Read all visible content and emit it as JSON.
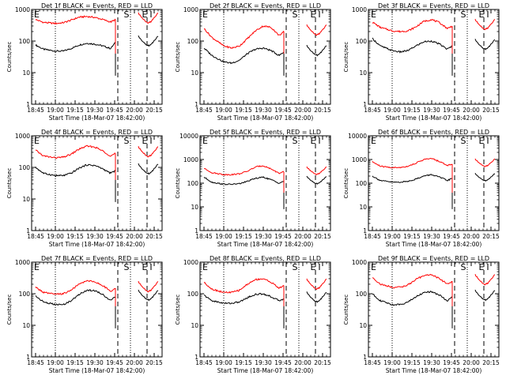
{
  "figure": {
    "colors": {
      "events": "#000000",
      "lld": "#ff0000",
      "axes": "#000000",
      "background": "#ffffff"
    },
    "x_tick_labels": [
      "18:45",
      "19:00",
      "19:15",
      "19:30",
      "19:45",
      "20:00",
      "20:15"
    ],
    "xlabel": "Start Time (18-Mar-07 18:42:00)",
    "ylabel": "Counts/sec",
    "markers": [
      {
        "label": "S",
        "time": 19.9
      },
      {
        "label": "E",
        "time": 20.13
      },
      {
        "label": "I",
        "time": 20.21
      }
    ]
  },
  "chart_data": [
    {
      "type": "line",
      "title": "Det 1f BLACK = Events, RED = LLD",
      "xlabel": "Start Time (18-Mar-07 18:42:00)",
      "ylabel": "Counts/sec",
      "y_scale": "log",
      "y_ticks": [
        1,
        10,
        100,
        1000
      ],
      "ylim": [
        1,
        1000
      ],
      "x_ticks": [
        "18:45",
        "19:00",
        "19:15",
        "19:30",
        "19:45",
        "20:00",
        "20:15"
      ],
      "vlines": [
        {
          "time": 19.0,
          "style": "dotted"
        },
        {
          "time": 19.79,
          "style": "dashed"
        },
        {
          "time": 19.95,
          "style": "dotted"
        },
        {
          "time": 20.16,
          "style": "dashed"
        }
      ],
      "series": [
        {
          "name": "Events",
          "color": "#000000",
          "t": [
            18.75,
            18.85,
            19.0,
            19.1,
            19.2,
            19.3,
            19.4,
            19.5,
            19.6,
            19.7,
            19.76
          ],
          "y": [
            75,
            55,
            48,
            48,
            58,
            75,
            85,
            80,
            70,
            58,
            90
          ]
        },
        {
          "name": "LLD",
          "color": "#ff0000",
          "t": [
            18.75,
            18.85,
            19.0,
            19.1,
            19.2,
            19.3,
            19.4,
            19.5,
            19.6,
            19.7,
            19.76
          ],
          "y": [
            480,
            390,
            360,
            380,
            460,
            570,
            600,
            560,
            480,
            400,
            480
          ]
        }
      ]
    },
    {
      "type": "line",
      "title": "Det 2f BLACK = Events, RED = LLD",
      "xlabel": "Start Time (18-Mar-07 18:42:00)",
      "ylabel": "Counts/sec",
      "y_scale": "log",
      "y_ticks": [
        1,
        10,
        100,
        1000
      ],
      "ylim": [
        1,
        1000
      ],
      "x_ticks": [
        "18:45",
        "19:00",
        "19:15",
        "19:30",
        "19:45",
        "20:00",
        "20:15"
      ],
      "vlines": [
        {
          "time": 19.0,
          "style": "dotted"
        },
        {
          "time": 19.79,
          "style": "dashed"
        },
        {
          "time": 19.95,
          "style": "dotted"
        },
        {
          "time": 20.16,
          "style": "dashed"
        }
      ],
      "series": [
        {
          "name": "Events",
          "color": "#000000",
          "t": [
            18.75,
            18.85,
            19.0,
            19.1,
            19.2,
            19.3,
            19.4,
            19.5,
            19.6,
            19.7,
            19.76
          ],
          "y": [
            60,
            35,
            22,
            20,
            25,
            40,
            55,
            60,
            50,
            35,
            45
          ]
        },
        {
          "name": "LLD",
          "color": "#ff0000",
          "t": [
            18.75,
            18.85,
            19.0,
            19.1,
            19.2,
            19.3,
            19.4,
            19.5,
            19.6,
            19.7,
            19.76
          ],
          "y": [
            250,
            130,
            70,
            60,
            70,
            120,
            210,
            300,
            270,
            150,
            200
          ]
        }
      ]
    },
    {
      "type": "line",
      "title": "Det 3f BLACK = Events, RED = LLD",
      "xlabel": "Start Time (18-Mar-07 18:42:00)",
      "ylabel": "Counts/sec",
      "y_scale": "log",
      "y_ticks": [
        1,
        10,
        100,
        1000
      ],
      "ylim": [
        1,
        1000
      ],
      "x_ticks": [
        "18:45",
        "19:00",
        "19:15",
        "19:30",
        "19:45",
        "20:00",
        "20:15"
      ],
      "vlines": [
        {
          "time": 19.0,
          "style": "dotted"
        },
        {
          "time": 19.79,
          "style": "dashed"
        },
        {
          "time": 19.95,
          "style": "dotted"
        },
        {
          "time": 20.16,
          "style": "dashed"
        }
      ],
      "series": [
        {
          "name": "Events",
          "color": "#000000",
          "t": [
            18.75,
            18.85,
            19.0,
            19.1,
            19.2,
            19.3,
            19.4,
            19.5,
            19.6,
            19.7,
            19.76
          ],
          "y": [
            120,
            70,
            50,
            45,
            50,
            70,
            95,
            100,
            80,
            55,
            70
          ]
        },
        {
          "name": "LLD",
          "color": "#ff0000",
          "t": [
            18.75,
            18.85,
            19.0,
            19.1,
            19.2,
            19.3,
            19.4,
            19.5,
            19.6,
            19.7,
            19.76
          ],
          "y": [
            400,
            270,
            210,
            200,
            210,
            280,
            420,
            480,
            380,
            250,
            300
          ]
        }
      ]
    },
    {
      "type": "line",
      "title": "Det 4f BLACK = Events, RED = LLD",
      "xlabel": "Start Time (18-Mar-07 18:42:00)",
      "ylabel": "Counts/sec",
      "y_scale": "log",
      "y_ticks": [
        1,
        10,
        100,
        1000
      ],
      "ylim": [
        1,
        1000
      ],
      "x_ticks": [
        "18:45",
        "19:00",
        "19:15",
        "19:30",
        "19:45",
        "20:00",
        "20:15"
      ],
      "vlines": [
        {
          "time": 19.0,
          "style": "dotted"
        },
        {
          "time": 19.79,
          "style": "dashed"
        },
        {
          "time": 19.95,
          "style": "dotted"
        },
        {
          "time": 20.16,
          "style": "dashed"
        }
      ],
      "series": [
        {
          "name": "Events",
          "color": "#000000",
          "t": [
            18.75,
            18.85,
            19.0,
            19.1,
            19.2,
            19.3,
            19.4,
            19.5,
            19.6,
            19.7,
            19.76
          ],
          "y": [
            100,
            65,
            55,
            55,
            65,
            95,
            120,
            115,
            90,
            65,
            80
          ]
        },
        {
          "name": "LLD",
          "color": "#ff0000",
          "t": [
            18.75,
            18.85,
            19.0,
            19.1,
            19.2,
            19.3,
            19.4,
            19.5,
            19.6,
            19.7,
            19.76
          ],
          "y": [
            350,
            230,
            200,
            210,
            260,
            380,
            470,
            440,
            330,
            230,
            280
          ]
        }
      ]
    },
    {
      "type": "line",
      "title": "Det 5f BLACK = Events, RED = LLD",
      "xlabel": "Start Time (18-Mar-07 18:42:00)",
      "ylabel": "Counts/sec",
      "y_scale": "log",
      "y_ticks": [
        1,
        10,
        100,
        1000,
        10000
      ],
      "ylim": [
        1,
        10000
      ],
      "x_ticks": [
        "18:45",
        "19:00",
        "19:15",
        "19:30",
        "19:45",
        "20:00",
        "20:15"
      ],
      "vlines": [
        {
          "time": 19.0,
          "style": "dotted"
        },
        {
          "time": 19.79,
          "style": "dashed"
        },
        {
          "time": 19.95,
          "style": "dotted"
        },
        {
          "time": 20.16,
          "style": "dashed"
        }
      ],
      "series": [
        {
          "name": "Events",
          "color": "#000000",
          "t": [
            18.75,
            18.85,
            19.0,
            19.1,
            19.2,
            19.3,
            19.4,
            19.5,
            19.6,
            19.7,
            19.76
          ],
          "y": [
            180,
            110,
            90,
            90,
            95,
            120,
            160,
            180,
            140,
            100,
            120
          ]
        },
        {
          "name": "LLD",
          "color": "#ff0000",
          "t": [
            18.75,
            18.85,
            19.0,
            19.1,
            19.2,
            19.3,
            19.4,
            19.5,
            19.6,
            19.7,
            19.76
          ],
          "y": [
            420,
            280,
            230,
            230,
            250,
            320,
            480,
            550,
            400,
            260,
            300
          ]
        }
      ]
    },
    {
      "type": "line",
      "title": "Det 6f BLACK = Events, RED = LLD",
      "xlabel": "Start Time (18-Mar-07 18:42:00)",
      "ylabel": "Counts/sec",
      "y_scale": "log",
      "y_ticks": [
        1,
        10,
        100,
        1000,
        10000
      ],
      "ylim": [
        1,
        10000
      ],
      "x_ticks": [
        "18:45",
        "19:00",
        "19:15",
        "19:30",
        "19:45",
        "20:00",
        "20:15"
      ],
      "vlines": [
        {
          "time": 19.0,
          "style": "dotted"
        },
        {
          "time": 19.79,
          "style": "dashed"
        },
        {
          "time": 19.95,
          "style": "dotted"
        },
        {
          "time": 20.16,
          "style": "dashed"
        }
      ],
      "series": [
        {
          "name": "Events",
          "color": "#000000",
          "t": [
            18.75,
            18.85,
            19.0,
            19.1,
            19.2,
            19.3,
            19.4,
            19.5,
            19.6,
            19.7,
            19.76
          ],
          "y": [
            200,
            130,
            110,
            110,
            120,
            150,
            200,
            230,
            180,
            130,
            160
          ]
        },
        {
          "name": "LLD",
          "color": "#ff0000",
          "t": [
            18.75,
            18.85,
            19.0,
            19.1,
            19.2,
            19.3,
            19.4,
            19.5,
            19.6,
            19.7,
            19.76
          ],
          "y": [
            800,
            520,
            450,
            460,
            520,
            700,
            1000,
            1100,
            820,
            560,
            650
          ]
        }
      ]
    },
    {
      "type": "line",
      "title": "Det 7f BLACK = Events, RED = LLD",
      "xlabel": "Start Time (18-Mar-07 18:42:00)",
      "ylabel": "Counts/sec",
      "y_scale": "log",
      "y_ticks": [
        1,
        10,
        100,
        1000
      ],
      "ylim": [
        1,
        1000
      ],
      "x_ticks": [
        "18:45",
        "19:00",
        "19:15",
        "19:30",
        "19:45",
        "20:00",
        "20:15"
      ],
      "vlines": [
        {
          "time": 19.0,
          "style": "dotted"
        },
        {
          "time": 19.79,
          "style": "dashed"
        },
        {
          "time": 19.95,
          "style": "dotted"
        },
        {
          "time": 20.16,
          "style": "dashed"
        }
      ],
      "series": [
        {
          "name": "Events",
          "color": "#000000",
          "t": [
            18.75,
            18.85,
            19.0,
            19.1,
            19.2,
            19.3,
            19.4,
            19.5,
            19.6,
            19.7,
            19.76
          ],
          "y": [
            85,
            55,
            45,
            45,
            60,
            95,
            130,
            125,
            95,
            60,
            80
          ]
        },
        {
          "name": "LLD",
          "color": "#ff0000",
          "t": [
            18.75,
            18.85,
            19.0,
            19.1,
            19.2,
            19.3,
            19.4,
            19.5,
            19.6,
            19.7,
            19.76
          ],
          "y": [
            160,
            110,
            95,
            100,
            130,
            200,
            260,
            240,
            180,
            120,
            150
          ]
        }
      ]
    },
    {
      "type": "line",
      "title": "Det 8f BLACK = Events, RED = LLD",
      "xlabel": "Start Time (18-Mar-07 18:42:00)",
      "ylabel": "Counts/sec",
      "y_scale": "log",
      "y_ticks": [
        1,
        10,
        100,
        1000
      ],
      "ylim": [
        1,
        1000
      ],
      "x_ticks": [
        "18:45",
        "19:00",
        "19:15",
        "19:30",
        "19:45",
        "20:00",
        "20:15"
      ],
      "vlines": [
        {
          "time": 19.0,
          "style": "dotted"
        },
        {
          "time": 19.79,
          "style": "dashed"
        },
        {
          "time": 19.95,
          "style": "dotted"
        },
        {
          "time": 20.16,
          "style": "dashed"
        }
      ],
      "series": [
        {
          "name": "Events",
          "color": "#000000",
          "t": [
            18.75,
            18.85,
            19.0,
            19.1,
            19.2,
            19.3,
            19.4,
            19.5,
            19.6,
            19.7,
            19.76
          ],
          "y": [
            90,
            60,
            50,
            50,
            55,
            75,
            95,
            100,
            80,
            60,
            70
          ]
        },
        {
          "name": "LLD",
          "color": "#ff0000",
          "t": [
            18.75,
            18.85,
            19.0,
            19.1,
            19.2,
            19.3,
            19.4,
            19.5,
            19.6,
            19.7,
            19.76
          ],
          "y": [
            230,
            140,
            110,
            110,
            130,
            200,
            280,
            300,
            230,
            150,
            180
          ]
        }
      ]
    },
    {
      "type": "line",
      "title": "Det 9f BLACK = Events, RED = LLD",
      "xlabel": "Start Time (18-Mar-07 18:42:00)",
      "ylabel": "Counts/sec",
      "y_scale": "log",
      "y_ticks": [
        1,
        10,
        100,
        1000
      ],
      "ylim": [
        1,
        1000
      ],
      "x_ticks": [
        "18:45",
        "19:00",
        "19:15",
        "19:30",
        "19:45",
        "20:00",
        "20:15"
      ],
      "vlines": [
        {
          "time": 19.0,
          "style": "dotted"
        },
        {
          "time": 19.79,
          "style": "dashed"
        },
        {
          "time": 19.95,
          "style": "dotted"
        },
        {
          "time": 20.16,
          "style": "dashed"
        }
      ],
      "series": [
        {
          "name": "Events",
          "color": "#000000",
          "t": [
            18.75,
            18.85,
            19.0,
            19.1,
            19.2,
            19.3,
            19.4,
            19.5,
            19.6,
            19.7,
            19.76
          ],
          "y": [
            100,
            60,
            45,
            45,
            55,
            80,
            110,
            115,
            90,
            60,
            80
          ]
        },
        {
          "name": "LLD",
          "color": "#ff0000",
          "t": [
            18.75,
            18.85,
            19.0,
            19.1,
            19.2,
            19.3,
            19.4,
            19.5,
            19.6,
            19.7,
            19.76
          ],
          "y": [
            330,
            200,
            160,
            160,
            190,
            280,
            380,
            400,
            300,
            200,
            250
          ]
        }
      ]
    }
  ]
}
